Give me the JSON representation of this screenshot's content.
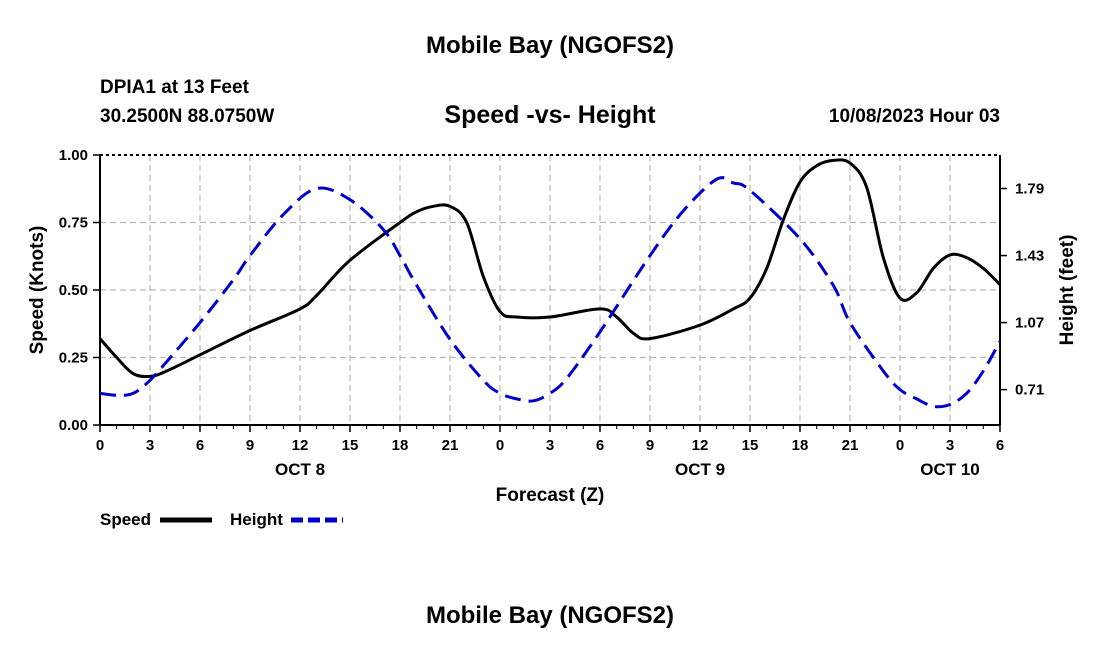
{
  "header": {
    "top_title": "Mobile Bay (NGOFS2)",
    "station": "DPIA1 at 13 Feet",
    "coords": "30.2500N  88.0750W",
    "subtitle": "Speed -vs- Height",
    "datetime": "10/08/2023 Hour 03"
  },
  "footer": {
    "bottom_title": "Mobile Bay (NGOFS2)"
  },
  "chart_data": {
    "type": "line",
    "title": "Speed -vs- Height",
    "xlabel": "Forecast (Z)",
    "ylabel": "Speed (Knots)",
    "y2label": "Height (feet)",
    "x_range": [
      0,
      54
    ],
    "ylim": [
      0,
      1.0
    ],
    "y2lim": [
      0.52,
      1.97
    ],
    "grid": true,
    "legend_position": "bottom-left",
    "x_ticks": [
      {
        "x": 0,
        "label": "0"
      },
      {
        "x": 3,
        "label": "3"
      },
      {
        "x": 6,
        "label": "6"
      },
      {
        "x": 9,
        "label": "9"
      },
      {
        "x": 12,
        "label": "12"
      },
      {
        "x": 15,
        "label": "15"
      },
      {
        "x": 18,
        "label": "18"
      },
      {
        "x": 21,
        "label": "21"
      },
      {
        "x": 24,
        "label": "0"
      },
      {
        "x": 27,
        "label": "3"
      },
      {
        "x": 30,
        "label": "6"
      },
      {
        "x": 33,
        "label": "9"
      },
      {
        "x": 36,
        "label": "12"
      },
      {
        "x": 39,
        "label": "15"
      },
      {
        "x": 42,
        "label": "18"
      },
      {
        "x": 45,
        "label": "21"
      },
      {
        "x": 48,
        "label": "0"
      },
      {
        "x": 51,
        "label": "3"
      },
      {
        "x": 54,
        "label": "6"
      }
    ],
    "date_labels": [
      {
        "x": 12,
        "label": "OCT 8"
      },
      {
        "x": 36,
        "label": "OCT 9"
      },
      {
        "x": 51,
        "label": "OCT 10"
      }
    ],
    "y_ticks": [
      {
        "v": 0.0,
        "label": "0.00"
      },
      {
        "v": 0.25,
        "label": "0.25"
      },
      {
        "v": 0.5,
        "label": "0.50"
      },
      {
        "v": 0.75,
        "label": "0.75"
      },
      {
        "v": 1.0,
        "label": "1.00"
      }
    ],
    "y2_ticks": [
      {
        "v": 0.71,
        "label": "0.71"
      },
      {
        "v": 1.07,
        "label": "1.07"
      },
      {
        "v": 1.43,
        "label": "1.43"
      },
      {
        "v": 1.79,
        "label": "1.79"
      }
    ],
    "series": [
      {
        "name": "Speed",
        "axis": "left",
        "color": "#000000",
        "style": "solid",
        "points": [
          [
            0,
            0.32
          ],
          [
            1,
            0.25
          ],
          [
            2,
            0.19
          ],
          [
            3,
            0.18
          ],
          [
            4,
            0.2
          ],
          [
            6,
            0.26
          ],
          [
            9,
            0.35
          ],
          [
            12,
            0.43
          ],
          [
            13,
            0.48
          ],
          [
            15,
            0.61
          ],
          [
            18,
            0.75
          ],
          [
            19,
            0.79
          ],
          [
            20,
            0.81
          ],
          [
            21,
            0.81
          ],
          [
            22,
            0.75
          ],
          [
            23,
            0.55
          ],
          [
            24,
            0.42
          ],
          [
            25,
            0.4
          ],
          [
            27,
            0.4
          ],
          [
            30,
            0.43
          ],
          [
            31,
            0.4
          ],
          [
            32,
            0.34
          ],
          [
            33,
            0.32
          ],
          [
            36,
            0.37
          ],
          [
            38,
            0.43
          ],
          [
            39,
            0.47
          ],
          [
            40,
            0.58
          ],
          [
            41,
            0.76
          ],
          [
            42,
            0.9
          ],
          [
            43,
            0.96
          ],
          [
            44,
            0.98
          ],
          [
            45,
            0.97
          ],
          [
            46,
            0.88
          ],
          [
            47,
            0.62
          ],
          [
            48,
            0.47
          ],
          [
            49,
            0.49
          ],
          [
            50,
            0.58
          ],
          [
            51,
            0.63
          ],
          [
            52,
            0.62
          ],
          [
            53,
            0.58
          ],
          [
            54,
            0.52
          ]
        ]
      },
      {
        "name": "Height",
        "axis": "right",
        "color": "#0000cc",
        "style": "dashed",
        "points": [
          [
            0,
            0.69
          ],
          [
            1,
            0.68
          ],
          [
            2,
            0.69
          ],
          [
            3,
            0.76
          ],
          [
            4,
            0.86
          ],
          [
            6,
            1.07
          ],
          [
            8,
            1.3
          ],
          [
            9,
            1.43
          ],
          [
            11,
            1.65
          ],
          [
            13,
            1.79
          ],
          [
            15,
            1.73
          ],
          [
            17,
            1.57
          ],
          [
            18,
            1.43
          ],
          [
            19,
            1.27
          ],
          [
            21,
            0.98
          ],
          [
            23,
            0.76
          ],
          [
            24,
            0.69
          ],
          [
            25,
            0.66
          ],
          [
            26,
            0.65
          ],
          [
            27,
            0.69
          ],
          [
            28,
            0.77
          ],
          [
            30,
            1.02
          ],
          [
            33,
            1.43
          ],
          [
            35,
            1.67
          ],
          [
            37,
            1.84
          ],
          [
            38,
            1.82
          ],
          [
            39,
            1.78
          ],
          [
            42,
            1.52
          ],
          [
            44,
            1.27
          ],
          [
            45,
            1.07
          ],
          [
            47,
            0.81
          ],
          [
            48,
            0.71
          ],
          [
            49,
            0.66
          ],
          [
            50,
            0.62
          ],
          [
            51,
            0.63
          ],
          [
            52,
            0.69
          ],
          [
            53,
            0.81
          ],
          [
            54,
            0.97
          ]
        ]
      }
    ]
  },
  "legend": {
    "speed_label": "Speed",
    "height_label": "Height"
  }
}
